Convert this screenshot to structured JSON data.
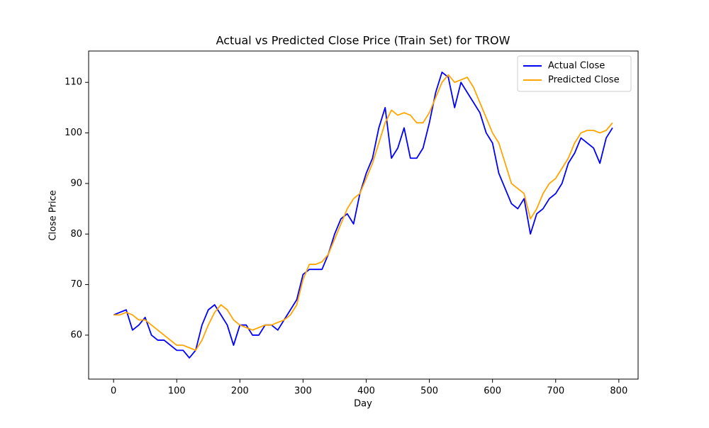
{
  "chart_data": {
    "type": "line",
    "title": "Actual vs Predicted Close Price (Train Set) for TROW",
    "xlabel": "Day",
    "ylabel": "Close Price",
    "x": [
      0,
      10,
      20,
      30,
      40,
      50,
      60,
      70,
      80,
      90,
      100,
      110,
      120,
      130,
      140,
      150,
      160,
      170,
      180,
      190,
      200,
      210,
      220,
      230,
      240,
      250,
      260,
      270,
      280,
      290,
      300,
      310,
      320,
      330,
      340,
      350,
      360,
      370,
      380,
      390,
      400,
      410,
      420,
      430,
      440,
      450,
      460,
      470,
      480,
      490,
      500,
      510,
      520,
      530,
      540,
      550,
      560,
      570,
      580,
      590,
      600,
      610,
      620,
      630,
      640,
      650,
      660,
      670,
      680,
      690,
      700,
      710,
      720,
      730,
      740,
      750,
      760,
      770,
      780,
      790
    ],
    "series": [
      {
        "name": "Actual Close",
        "color": "#0000ff",
        "values": [
          64,
          64.5,
          65,
          61,
          62,
          63.5,
          60,
          59,
          59,
          58,
          57,
          57,
          55.5,
          57,
          62,
          65,
          66,
          64,
          62,
          58,
          62,
          62,
          60,
          60,
          62,
          62,
          61,
          63,
          65,
          67,
          72,
          73,
          73,
          73,
          76,
          80,
          83,
          84,
          82,
          88,
          92,
          95,
          101,
          105,
          95,
          97,
          101,
          95,
          95,
          97,
          102,
          108,
          112,
          111,
          105,
          110,
          108,
          106,
          104,
          100,
          98,
          92,
          89,
          86,
          85,
          87,
          80,
          84,
          85,
          87,
          88,
          90,
          94,
          96,
          99,
          98,
          97,
          94,
          99,
          101
        ]
      },
      {
        "name": "Predicted Close",
        "color": "#ffa500",
        "values": [
          64,
          64,
          64.5,
          64,
          63,
          63,
          62,
          61,
          60,
          59,
          58,
          58,
          57.5,
          57,
          59,
          62,
          64.5,
          66,
          65,
          63,
          62,
          61.5,
          61,
          61.5,
          62,
          62,
          62.5,
          63,
          64,
          66,
          71,
          74,
          74,
          74.5,
          76,
          79,
          82,
          85,
          87,
          88,
          91,
          94,
          98,
          102,
          104.5,
          103.5,
          104,
          103.5,
          102,
          102,
          104,
          107,
          110,
          111.5,
          110,
          110.5,
          111,
          109,
          106,
          103,
          100,
          98,
          94,
          90,
          89,
          88,
          83,
          85,
          88,
          90,
          91,
          93,
          95,
          98,
          100,
          100.5,
          100.5,
          100,
          100.5,
          102
        ]
      }
    ],
    "xlim": [
      -39.5,
      830.5
    ],
    "xticks": [
      0,
      100,
      200,
      300,
      400,
      500,
      600,
      700,
      800
    ],
    "ylim": [
      51.3,
      116.2
    ],
    "yticks": [
      60,
      70,
      80,
      90,
      100,
      110
    ],
    "legend": "upper right"
  }
}
